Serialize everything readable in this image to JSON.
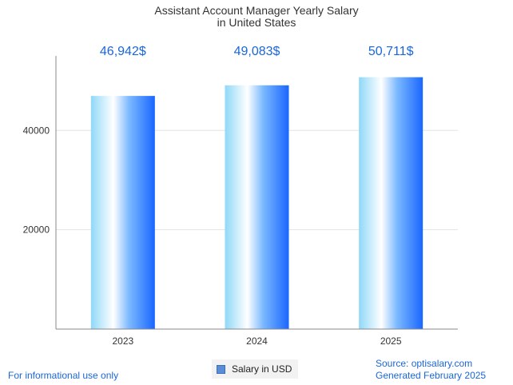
{
  "chart_data": {
    "type": "bar",
    "title_lines": [
      "Assistant Account Manager Yearly Salary",
      "in United States"
    ],
    "categories": [
      "2023",
      "2024",
      "2025"
    ],
    "values": [
      46942,
      49083,
      50711
    ],
    "data_labels": [
      "46,942$",
      "49,083$",
      "50,711$"
    ],
    "series": [
      {
        "name": "Salary in USD",
        "values": [
          46942,
          49083,
          50711
        ]
      }
    ],
    "ylim": [
      0,
      55000
    ],
    "yticks": [
      20000,
      40000
    ],
    "ytick_labels": [
      "20000",
      "40000"
    ],
    "grid": true,
    "legend": "bottom-center",
    "colors": {
      "bar_light": "#ffffff",
      "bar_mid": "#8fd8f8",
      "bar_dark": "#1a66ff",
      "label": "#1a66d9"
    }
  },
  "footer": {
    "disclaimer": "For informational use only",
    "source": "Source: optisalary.com",
    "generated": "Generated February 2025"
  }
}
